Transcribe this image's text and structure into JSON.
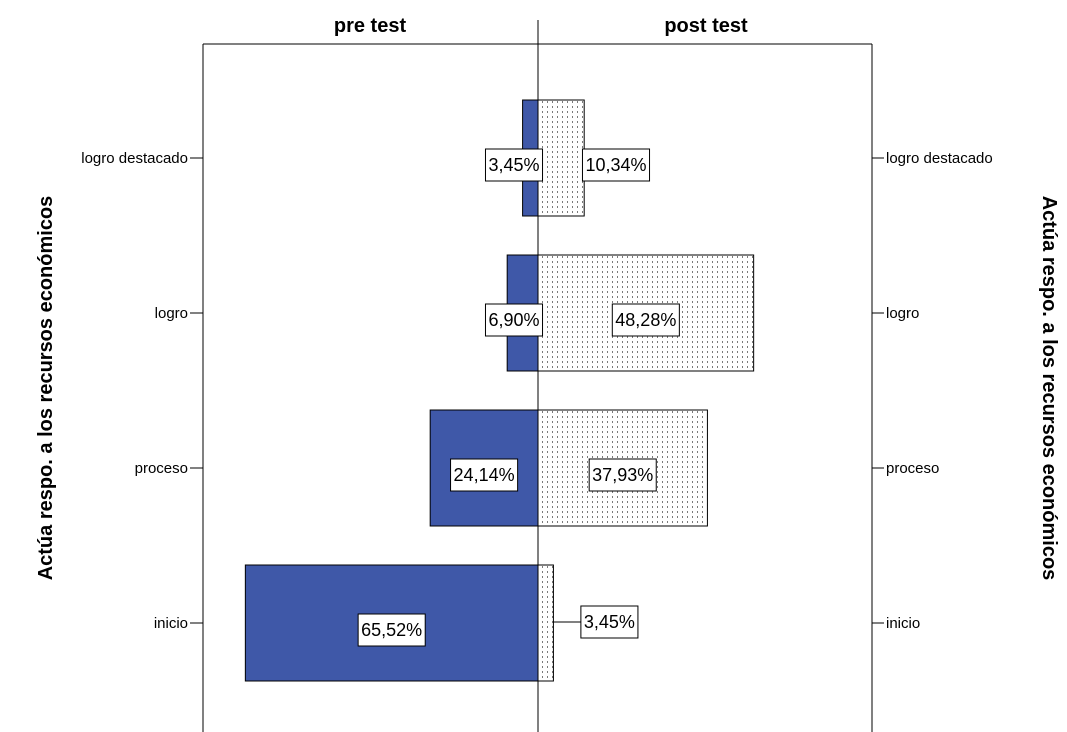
{
  "chart_data": {
    "type": "bar",
    "orientation": "horizontal",
    "layout": "population-pyramid",
    "categories": [
      "logro destacado",
      "logro",
      "proceso",
      "inicio"
    ],
    "series": [
      {
        "name": "pre test",
        "values": [
          3.45,
          6.9,
          24.14,
          65.52
        ],
        "labels": [
          "3,45%",
          "6,90%",
          "24,14%",
          "65,52%"
        ],
        "color": "#3F58A8",
        "pattern": "solid"
      },
      {
        "name": "post test",
        "values": [
          10.34,
          48.28,
          37.93,
          3.45
        ],
        "labels": [
          "10,34%",
          "48,28%",
          "37,93%",
          "3,45%"
        ],
        "color": "#FFFFFF",
        "pattern": "dotted-vertical"
      }
    ],
    "ylabel_left": "Actúa respo. a los recursos económicos",
    "ylabel_right": "Actúa respo. a los recursos económicos",
    "xlim": [
      0,
      75
    ],
    "grid": false,
    "legend": "none"
  }
}
